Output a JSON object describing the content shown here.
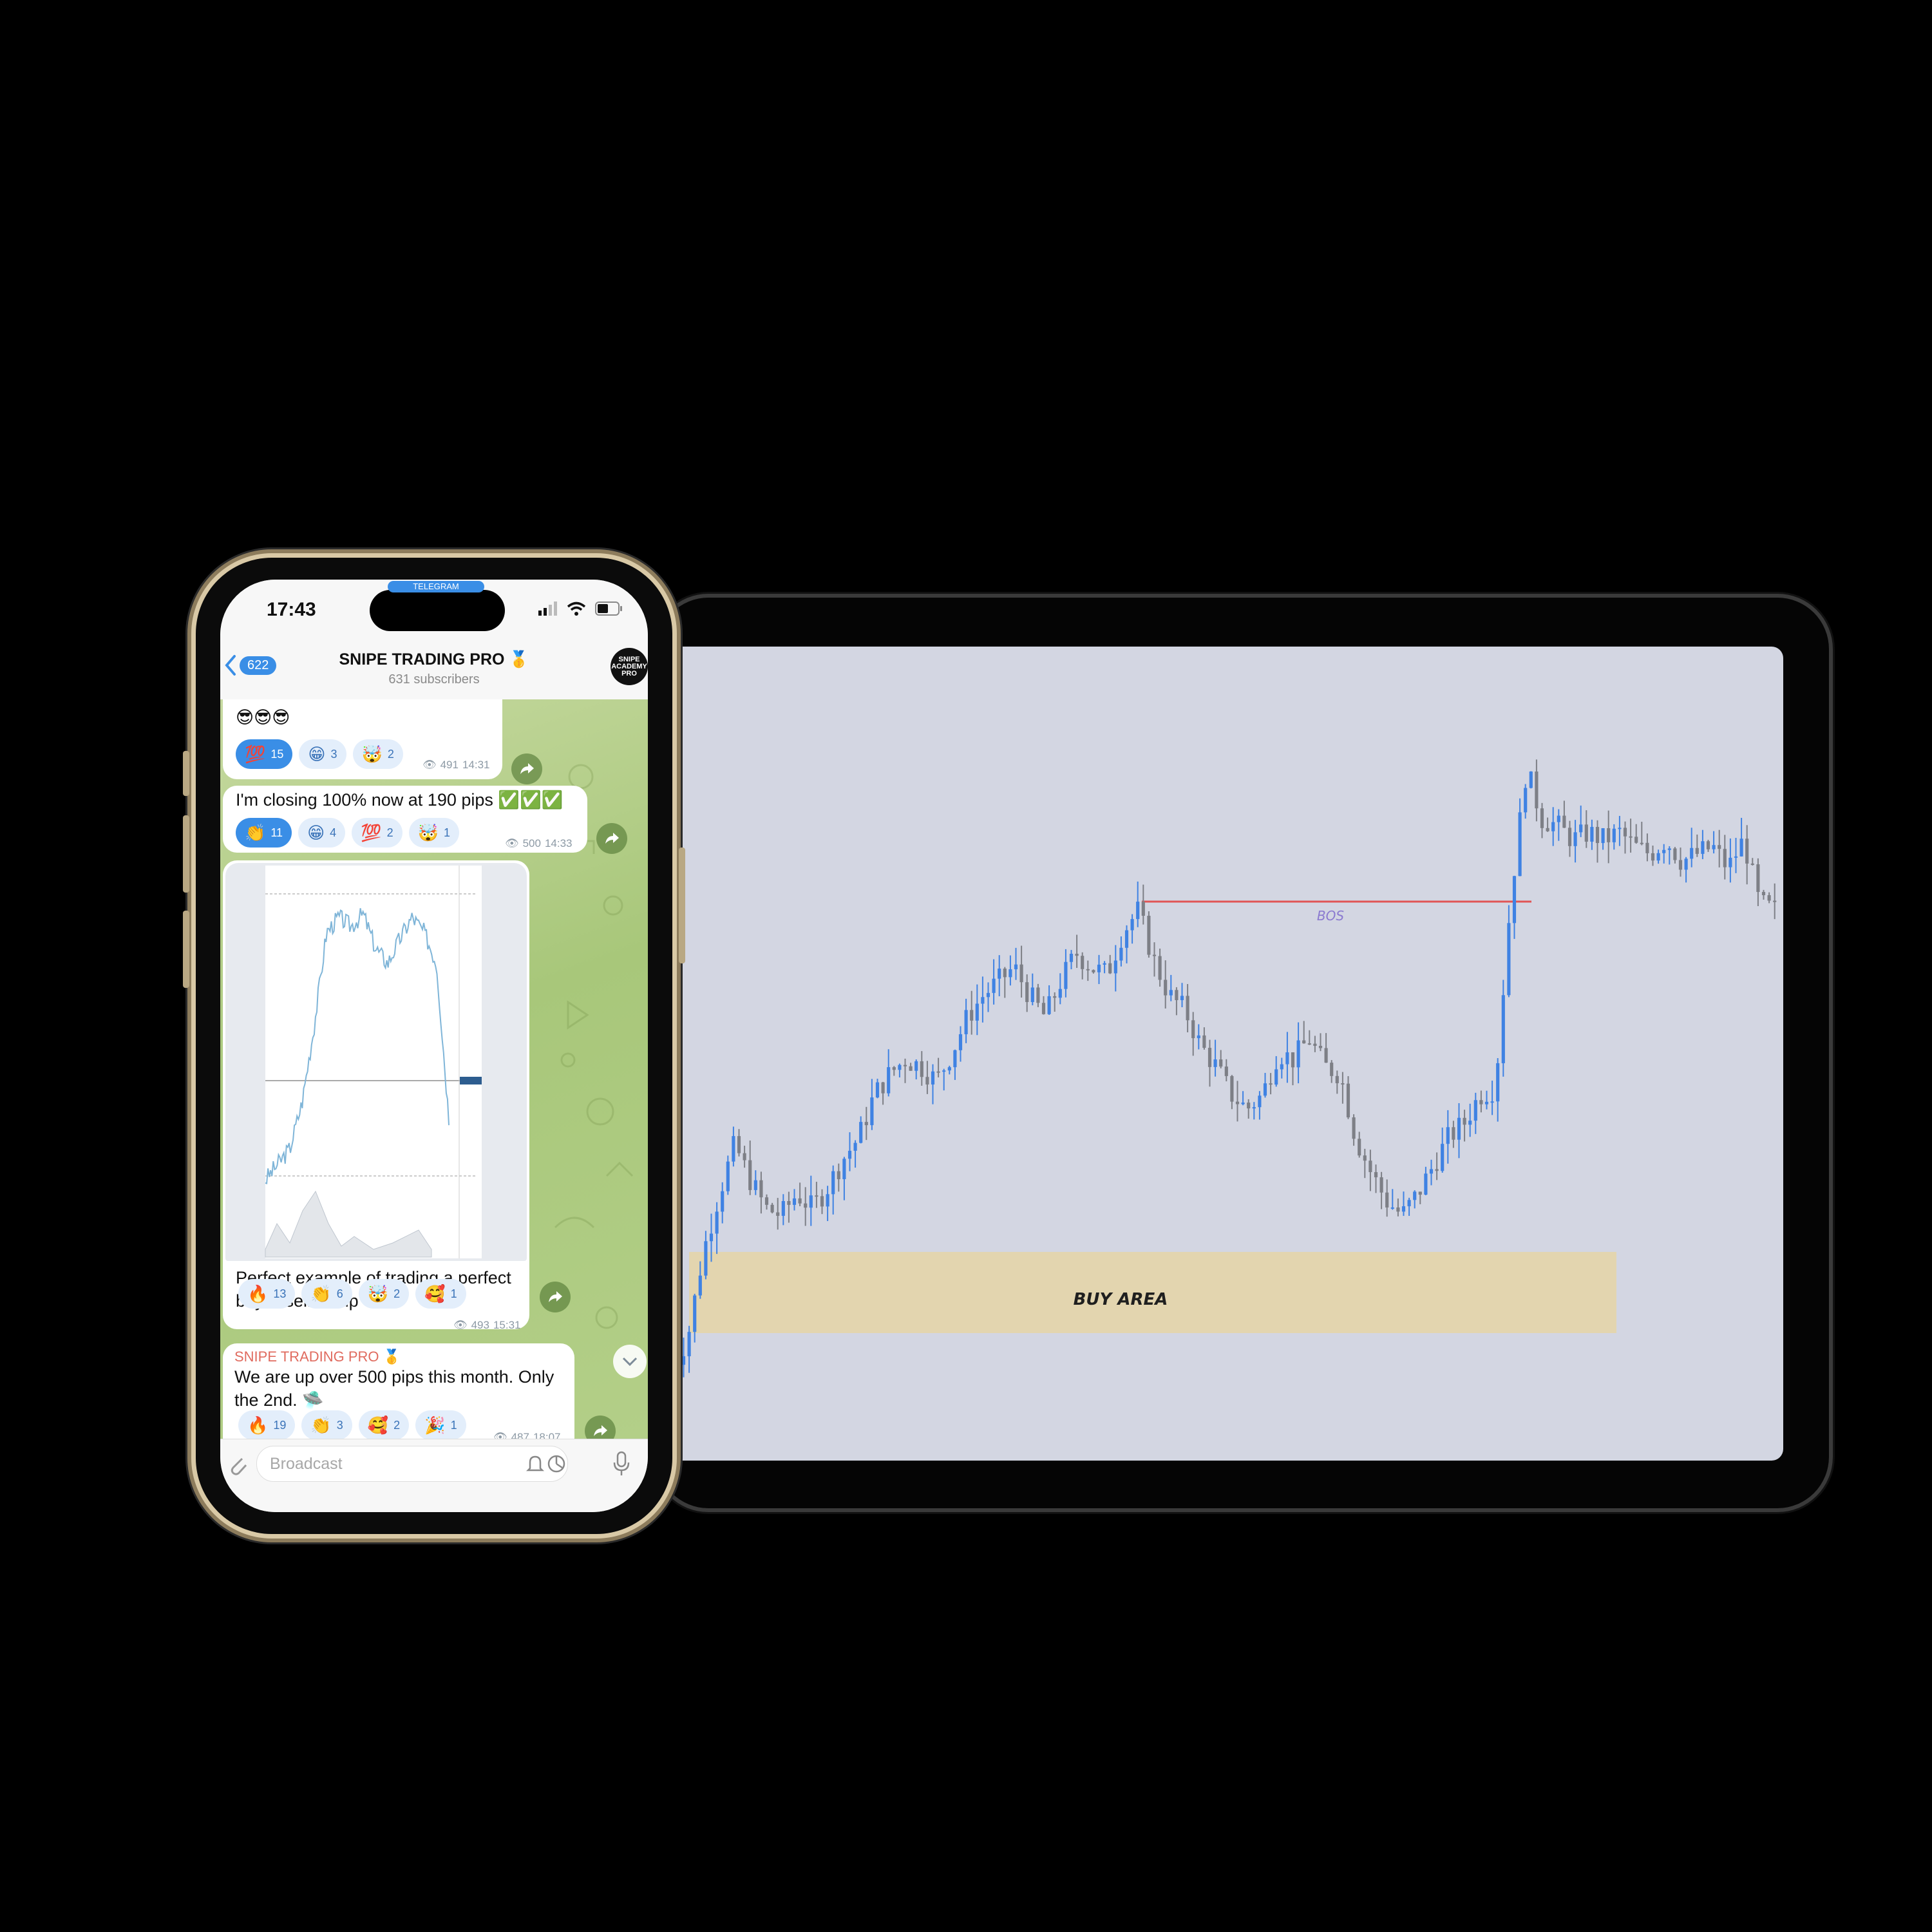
{
  "status": {
    "time": "17:43",
    "app_pill": "TELEGRAM"
  },
  "header": {
    "back_count": "622",
    "title": "SNIPE TRADING PRO 🥇",
    "subtitle": "631 subscribers",
    "avatar_text": "SNIPE ACADEMY PRO"
  },
  "messages": [
    {
      "text": "😎😎😎",
      "reactions": [
        {
          "emoji": "💯",
          "count": "15",
          "active": true
        },
        {
          "emoji": "😁",
          "count": "3"
        },
        {
          "emoji": "🤯",
          "count": "2"
        }
      ],
      "views": "491",
      "time": "14:31"
    },
    {
      "text": "I'm closing 100% now at 190 pips ✅✅✅",
      "reactions": [
        {
          "emoji": "👏",
          "count": "11",
          "active": true
        },
        {
          "emoji": "😁",
          "count": "4"
        },
        {
          "emoji": "💯",
          "count": "2"
        },
        {
          "emoji": "🤯",
          "count": "1"
        }
      ],
      "views": "500",
      "time": "14:33"
    },
    {
      "text_line1": "Perfect example of trading a perfect",
      "text_line2": "buy & sell setup 😎",
      "reactions": [
        {
          "emoji": "🔥",
          "count": "13"
        },
        {
          "emoji": "👏",
          "count": "6"
        },
        {
          "emoji": "🤯",
          "count": "2"
        },
        {
          "emoji": "🥰",
          "count": "1"
        }
      ],
      "views": "493",
      "time": "15:31"
    },
    {
      "sender": "SNIPE TRADING PRO 🥇",
      "text_line1": "We are up over 500 pips this month. Only",
      "text_line2": "the 2nd. 🛸",
      "reactions": [
        {
          "emoji": "🔥",
          "count": "19"
        },
        {
          "emoji": "👏",
          "count": "3"
        },
        {
          "emoji": "🥰",
          "count": "2"
        },
        {
          "emoji": "🎉",
          "count": "1"
        }
      ],
      "views": "487",
      "time": "18:07"
    }
  ],
  "composer": {
    "placeholder": "Broadcast"
  },
  "chart_data": {
    "type": "candlestick",
    "title": "",
    "annotations": [
      {
        "label": "BOS",
        "kind": "horizontal-line",
        "color": "#e05555"
      },
      {
        "label": "BUY AREA",
        "kind": "zone",
        "color": "#e3d3ac"
      }
    ],
    "up_color": "#3f82e3",
    "down_color": "#7d7f86",
    "price_path": [
      0.05,
      0.1,
      0.22,
      0.3,
      0.37,
      0.32,
      0.28,
      0.27,
      0.3,
      0.28,
      0.31,
      0.35,
      0.38,
      0.44,
      0.47,
      0.49,
      0.48,
      0.46,
      0.5,
      0.55,
      0.58,
      0.6,
      0.62,
      0.58,
      0.55,
      0.6,
      0.64,
      0.62,
      0.61,
      0.67,
      0.7,
      0.63,
      0.58,
      0.56,
      0.51,
      0.48,
      0.44,
      0.42,
      0.44,
      0.5,
      0.49,
      0.52,
      0.48,
      0.47,
      0.38,
      0.33,
      0.29,
      0.27,
      0.3,
      0.34,
      0.38,
      0.4,
      0.44,
      0.45,
      0.72,
      0.9,
      0.83,
      0.82,
      0.8,
      0.81,
      0.8,
      0.81,
      0.79,
      0.78,
      0.8,
      0.77,
      0.78,
      0.79,
      0.76,
      0.8,
      0.71,
      0.7
    ]
  }
}
